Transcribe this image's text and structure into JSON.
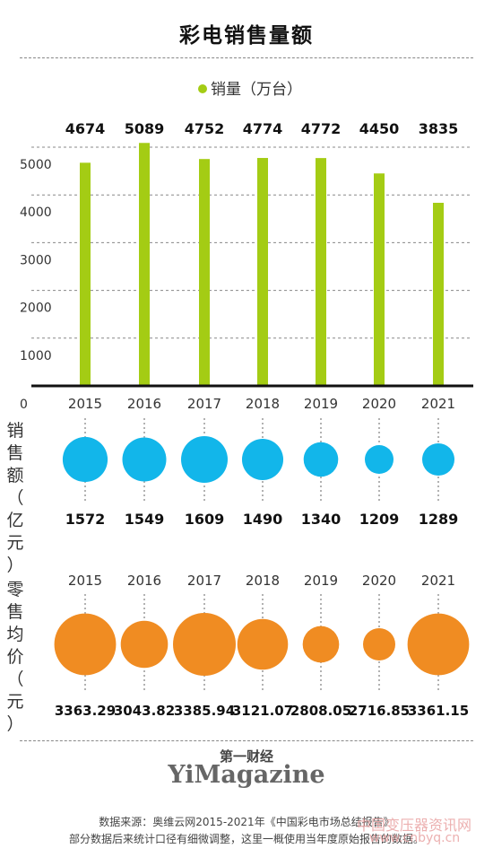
{
  "title": "彩电销售量额",
  "volume_axis_labels": [
    "销",
    "售",
    "额",
    "（",
    "亿",
    "元",
    "）"
  ],
  "price_axis_labels": [
    "零",
    "售",
    "均",
    "价",
    "（",
    "元",
    "）"
  ],
  "logo": {
    "cn": "第一财经",
    "en": "YiMagazine"
  },
  "source": {
    "line1": "数据来源：奥维云网2015-2021年《中国彩电市场总结报告》",
    "line2": "部分数据后来统计口径有细微调整，这里一概使用当年度原始报告的数据。"
  },
  "watermark": {
    "line1": "中国变压器资讯网",
    "line2": "www.cnbyq.cn"
  },
  "colors": {
    "bar": "#a4cc14",
    "bubble_sales": "#12b6ea",
    "bubble_price": "#f08c22",
    "axis": "#111111",
    "grid": "#888888"
  },
  "chart_data": [
    {
      "type": "bar",
      "legend": "销量（万台）",
      "categories": [
        "2015",
        "2016",
        "2017",
        "2018",
        "2019",
        "2020",
        "2021"
      ],
      "values": [
        4674,
        5089,
        4752,
        4774,
        4772,
        4450,
        3835
      ],
      "ylim": [
        0,
        5000
      ],
      "yticks": [
        0,
        1000,
        2000,
        3000,
        4000,
        5000
      ],
      "legend_position": "top-center"
    },
    {
      "type": "scatter",
      "name": "销售额（亿元）",
      "categories": [
        "2015",
        "2016",
        "2017",
        "2018",
        "2019",
        "2020",
        "2021"
      ],
      "values": [
        1572,
        1549,
        1609,
        1490,
        1340,
        1209,
        1289
      ]
    },
    {
      "type": "scatter",
      "name": "零售均价（元）",
      "categories": [
        "2015",
        "2016",
        "2017",
        "2018",
        "2019",
        "2020",
        "2021"
      ],
      "values": [
        3363.29,
        3043.82,
        3385.94,
        3121.07,
        2808.05,
        2716.85,
        3361.15
      ]
    }
  ]
}
